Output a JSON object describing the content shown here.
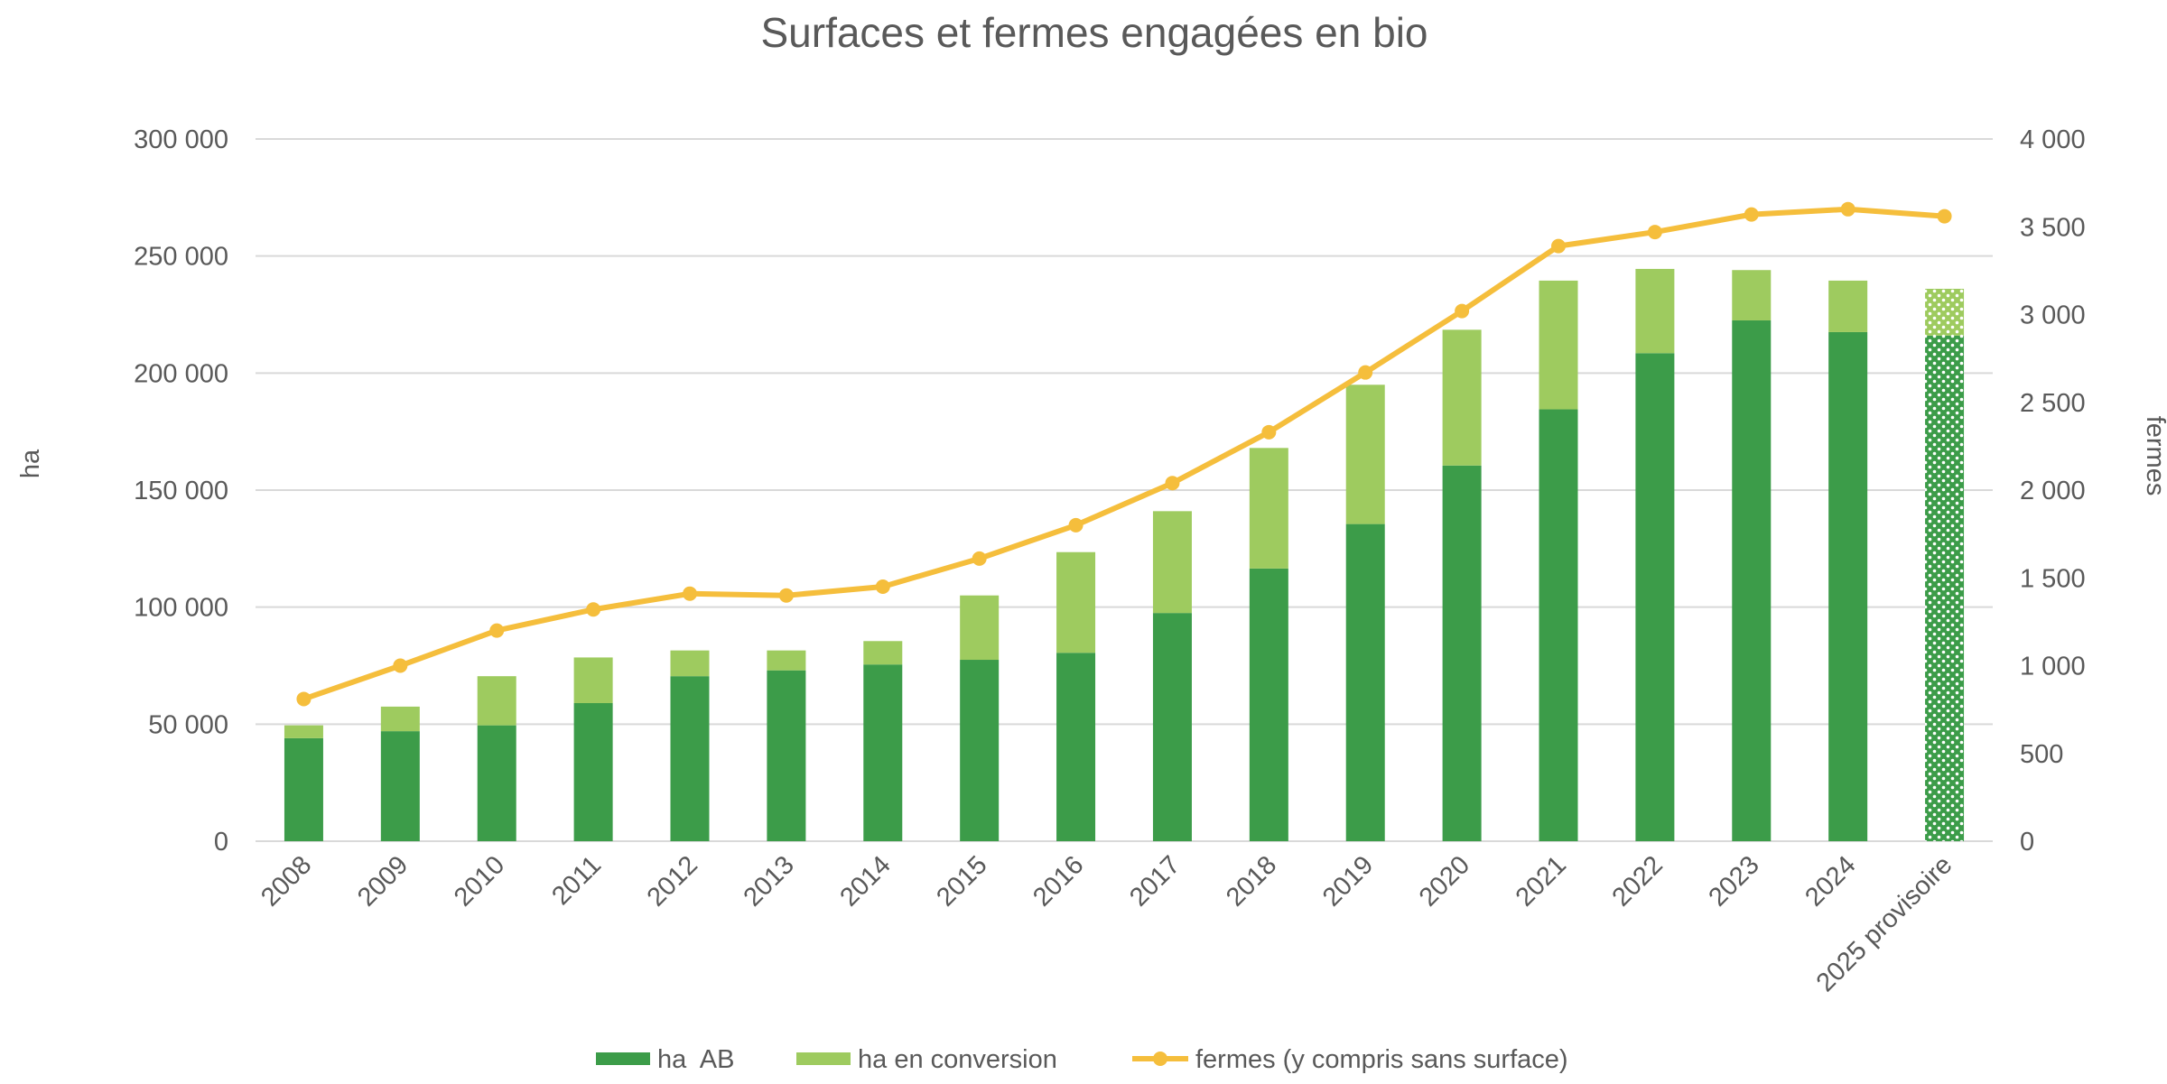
{
  "chart_data": {
    "type": "bar",
    "title": "Surfaces et fermes engagées en bio",
    "ylabel": "ha",
    "y2label": "fermes",
    "categories": [
      "2008",
      "2009",
      "2010",
      "2011",
      "2012",
      "2013",
      "2014",
      "2015",
      "2016",
      "2017",
      "2018",
      "2019",
      "2020",
      "2021",
      "2022",
      "2023",
      "2024",
      "2025 provisoire"
    ],
    "y_ticks": [
      "0",
      "50 000",
      "100 000",
      "150 000",
      "200 000",
      "250 000",
      "300 000"
    ],
    "y2_ticks": [
      "0",
      "500",
      "1 000",
      "1 500",
      "2 000",
      "2 500",
      "3 000",
      "3 500",
      "4 000"
    ],
    "ylim": [
      0,
      300000
    ],
    "y2lim": [
      0,
      4000
    ],
    "grid": true,
    "legend_position": "bottom",
    "series": [
      {
        "name": "ha  AB",
        "type": "bar",
        "stack": "surface",
        "color": "#3c9c49",
        "values": [
          44000,
          47000,
          49500,
          59000,
          70500,
          73000,
          75500,
          77500,
          80500,
          97500,
          116500,
          135500,
          160500,
          184500,
          208500,
          222500,
          217500,
          216000
        ]
      },
      {
        "name": "ha en conversion",
        "type": "bar",
        "stack": "surface",
        "color": "#9ecb5f",
        "values": [
          5500,
          10500,
          21000,
          19500,
          11000,
          8500,
          10000,
          27500,
          43000,
          43500,
          51500,
          59500,
          58000,
          55000,
          36000,
          21500,
          22000,
          20000
        ]
      },
      {
        "name": "fermes (y compris sans surface)",
        "type": "line",
        "axis": "right",
        "color": "#f5be3c",
        "values": [
          810,
          1000,
          1200,
          1320,
          1410,
          1400,
          1450,
          1610,
          1800,
          2040,
          2330,
          2670,
          3020,
          3390,
          3470,
          3570,
          3600,
          3560
        ]
      }
    ],
    "notes": {
      "last_category_pattern": "dotted"
    }
  }
}
